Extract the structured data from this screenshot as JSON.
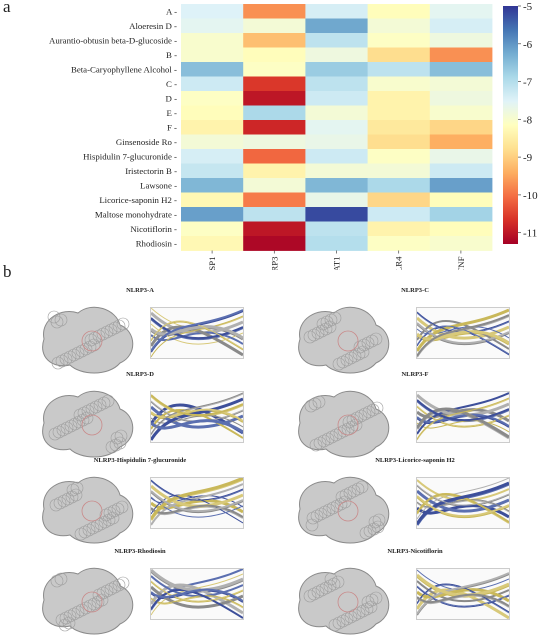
{
  "panel_labels": {
    "a": "a",
    "b": "b"
  },
  "chart_data": {
    "type": "heatmap",
    "rows": [
      "A",
      "Aloeresin D",
      "Aurantio-obtusin beta-D-glucoside",
      "B",
      "Beta-Caryophyllene Alcohol",
      "C",
      "D",
      "E",
      "F",
      "Ginsenoside Ro",
      "Hispidulin 7-glucuronide",
      "Iristectorin B",
      "Lawsone",
      "Licorice-saponin H2",
      "Maltose monohydrate",
      "Nicotiflorin",
      "Rhodiosin"
    ],
    "columns": [
      "CASP1",
      "NLRP3",
      "STAT1",
      "TLR4",
      "TNF"
    ],
    "values": [
      [
        -7.5,
        -9.7,
        -7.4,
        -8.2,
        -7.6
      ],
      [
        -7.6,
        -7.9,
        -6.2,
        -7.9,
        -7.4
      ],
      [
        -8.0,
        -9.2,
        -7.1,
        -8.1,
        -7.8
      ],
      [
        -8.0,
        -8.2,
        -7.8,
        -8.8,
        -9.7
      ],
      [
        -6.5,
        -8.1,
        -6.7,
        -7.1,
        -6.5
      ],
      [
        -7.3,
        -10.6,
        -7.1,
        -8.0,
        -7.9
      ],
      [
        -8.1,
        -11.0,
        -7.3,
        -8.4,
        -7.8
      ],
      [
        -8.2,
        -6.9,
        -7.9,
        -8.4,
        -8.0
      ],
      [
        -8.4,
        -10.8,
        -7.6,
        -8.6,
        -8.9
      ],
      [
        -7.9,
        -7.8,
        -7.7,
        -8.8,
        -9.4
      ],
      [
        -7.4,
        -10.1,
        -7.3,
        -8.1,
        -7.7
      ],
      [
        -7.2,
        -8.4,
        -7.9,
        -7.9,
        -7.3
      ],
      [
        -6.4,
        -7.9,
        -6.4,
        -6.9,
        -6.1
      ],
      [
        -8.3,
        -9.9,
        -7.7,
        -8.9,
        -8.2
      ],
      [
        -6.1,
        -7.1,
        -5.2,
        -7.3,
        -6.8
      ],
      [
        -8.1,
        -11.0,
        -7.1,
        -8.4,
        -8.2
      ],
      [
        -8.3,
        -11.2,
        -7.0,
        -8.1,
        -8.0
      ]
    ],
    "colorbar": {
      "min": -11.3,
      "max": -5.0,
      "ticks": [
        "-5",
        "-6",
        "-7",
        "-8",
        "-9",
        "-10",
        "-11"
      ],
      "colormap": "RdYlBu"
    }
  },
  "docking": [
    {
      "title": "NLRP3-A"
    },
    {
      "title": "NLRP3-C"
    },
    {
      "title": "NLRP3-D"
    },
    {
      "title": "NLRP3-F"
    },
    {
      "title": "NLRP3-Hispidulin 7-glucuronide"
    },
    {
      "title": "NLRP3-Licorice-saponin H2"
    },
    {
      "title": "NLRP3-Rhodiosin"
    },
    {
      "title": "NLRP3-Nicotiflorin"
    }
  ]
}
